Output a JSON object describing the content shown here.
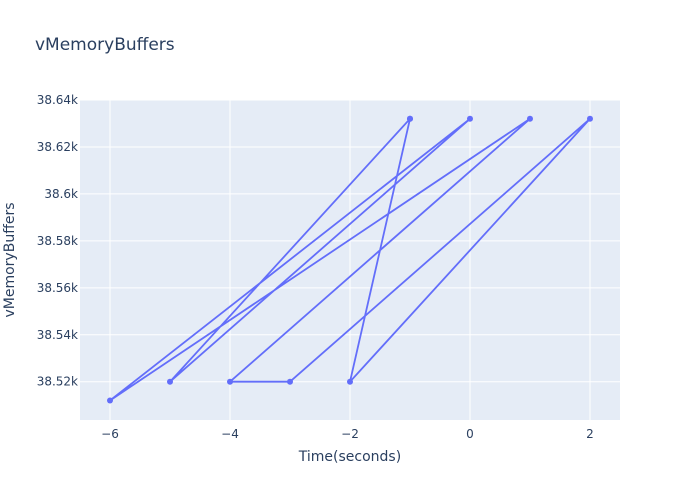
{
  "chart_data": {
    "type": "line",
    "title": "vMemoryBuffers",
    "xlabel": "Time(seconds)",
    "ylabel": "vMemoryBuffers",
    "xlim": [
      -6.5,
      2.5
    ],
    "ylim": [
      38503.7,
      38640
    ],
    "grid": true,
    "x_ticks": [
      -6,
      -4,
      -2,
      0,
      2
    ],
    "x_tick_labels": [
      "−6",
      "−4",
      "−2",
      "0",
      "2"
    ],
    "y_ticks": [
      38520,
      38540,
      38560,
      38580,
      38600,
      38620,
      38640
    ],
    "y_tick_labels": [
      "38.52k",
      "38.54k",
      "38.56k",
      "38.58k",
      "38.6k",
      "38.62k",
      "38.64k"
    ],
    "colors": {
      "line": "#636efa",
      "plot_bg": "#e5ecf6",
      "grid": "#ffffff",
      "text": "#2a3f5f"
    },
    "series": [
      {
        "x": [
          -1,
          -5,
          0,
          -6,
          1,
          -4,
          -3,
          2,
          -2,
          -1
        ],
        "y": [
          38632,
          38520,
          38632,
          38512,
          38632,
          38520,
          38520,
          38632,
          38520,
          38632
        ]
      }
    ]
  }
}
